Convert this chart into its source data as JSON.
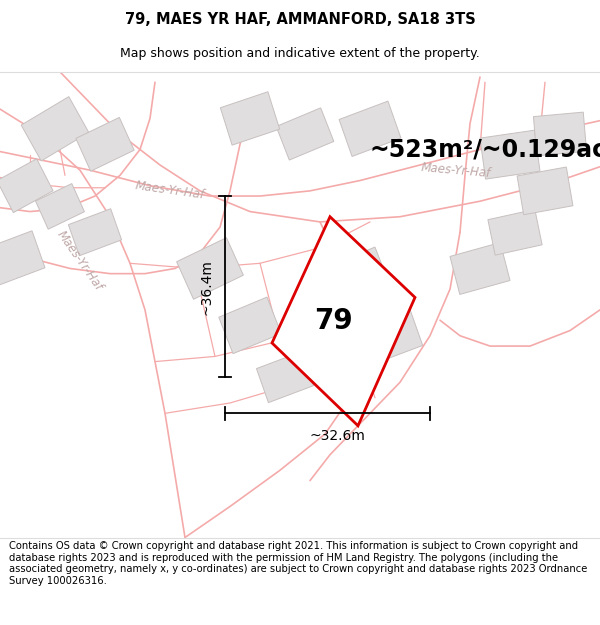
{
  "title": "79, MAES YR HAF, AMMANFORD, SA18 3TS",
  "subtitle": "Map shows position and indicative extent of the property.",
  "area_text": "~523m²/~0.129ac.",
  "number_label": "79",
  "dim_horizontal": "~32.6m",
  "dim_vertical": "~36.4m",
  "footer": "Contains OS data © Crown copyright and database right 2021. This information is subject to Crown copyright and database rights 2023 and is reproduced with the permission of HM Land Registry. The polygons (including the associated geometry, namely x, y co-ordinates) are subject to Crown copyright and database rights 2023 Ordnance Survey 100026316.",
  "bg_color": "#f7f5f5",
  "road_line_color": "#f5aaaa",
  "building_color": "#e0dede",
  "building_edge": "#c8c0c0",
  "plot_edge_color": "#dd0000",
  "title_fontsize": 10.5,
  "subtitle_fontsize": 9,
  "area_fontsize": 17,
  "number_fontsize": 20,
  "dim_fontsize": 10,
  "footer_fontsize": 7.2,
  "road_label_color": "#c0a8a8",
  "road_label_fontsize": 8.5
}
